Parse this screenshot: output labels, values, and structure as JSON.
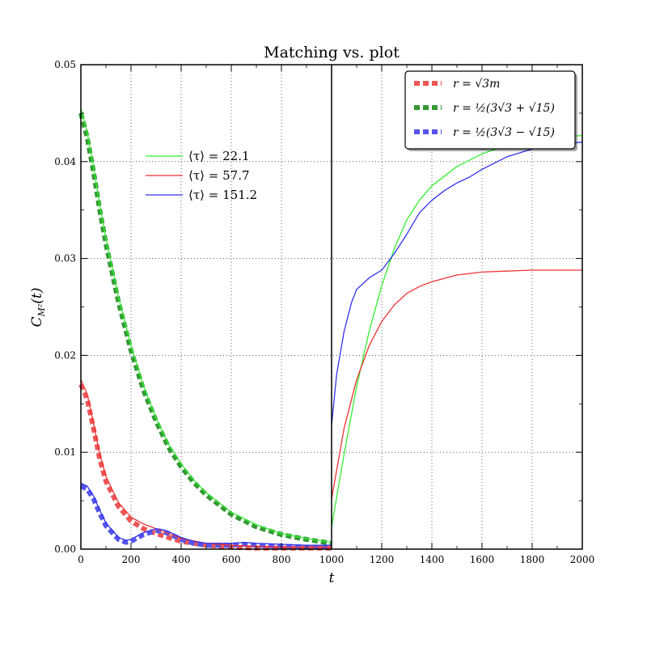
{
  "chart_data": {
    "type": "line",
    "title": "Matching vs. plot",
    "xlabel": "t",
    "ylabel": "C_{M²}(t)",
    "ylabel_main": "C",
    "ylabel_sub": "M²",
    "ylabel_suffix": "(t)",
    "xlim": [
      0,
      2000
    ],
    "ylim": [
      0,
      0.05
    ],
    "x_ticks": [
      0,
      200,
      400,
      600,
      800,
      1000,
      1200,
      1400,
      1600,
      1800,
      2000
    ],
    "y_ticks": [
      0.0,
      0.01,
      0.02,
      0.03,
      0.04,
      0.05
    ],
    "x_tick_labels": [
      "0",
      "200",
      "400",
      "600",
      "800",
      "1000",
      "1200",
      "1400",
      "1600",
      "1800",
      "2000"
    ],
    "y_tick_labels": [
      "0.00",
      "0.01",
      "0.02",
      "0.03",
      "0.04",
      "0.05"
    ],
    "grid": true,
    "divider_x": 1000,
    "colors": {
      "green": "#33ee33",
      "red": "#ee3333",
      "blue": "#3333ee",
      "green_dashed": "#339933",
      "red_dashed": "#ee5555",
      "blue_dashed": "#5555ee"
    },
    "legend_left": {
      "placement": "upper-left",
      "entries": [
        {
          "label": "⟨τ⟩ = 22.1",
          "color": "green"
        },
        {
          "label": "⟨τ⟩ = 57.7",
          "color": "red"
        },
        {
          "label": "⟨τ⟩ = 151.2",
          "color": "blue"
        }
      ]
    },
    "legend_right": {
      "placement": "top-right",
      "entries": [
        {
          "label": "r = √3m",
          "color": "red_dashed"
        },
        {
          "label": "r = ½(3√3 + √15)",
          "color": "green_dashed"
        },
        {
          "label": "r = ½(3√3 − √15)",
          "color": "blue_dashed"
        }
      ]
    },
    "series": [
      {
        "name": "⟨τ⟩ = 22.1",
        "color": "green",
        "style": "solid",
        "x": [
          0,
          25,
          50,
          75,
          100,
          150,
          200,
          250,
          300,
          350,
          400,
          450,
          500,
          600,
          700,
          800,
          900,
          1000
        ],
        "y": [
          0.0455,
          0.043,
          0.0395,
          0.0355,
          0.032,
          0.026,
          0.021,
          0.0168,
          0.0135,
          0.0108,
          0.0088,
          0.0071,
          0.0058,
          0.0038,
          0.0025,
          0.0016,
          0.0011,
          0.0007
        ]
      },
      {
        "name": "⟨τ⟩ = 57.7",
        "color": "red",
        "style": "solid",
        "x": [
          0,
          25,
          50,
          75,
          100,
          150,
          200,
          250,
          300,
          350,
          400,
          500,
          600,
          700,
          800,
          900,
          1000
        ],
        "y": [
          0.0175,
          0.016,
          0.013,
          0.0098,
          0.0075,
          0.0048,
          0.0033,
          0.0026,
          0.0021,
          0.0016,
          0.0011,
          0.0006,
          0.0004,
          0.0003,
          0.0002,
          0.0002,
          0.0002
        ]
      },
      {
        "name": "⟨τ⟩ = 151.2",
        "color": "blue",
        "style": "solid",
        "x": [
          0,
          25,
          50,
          75,
          100,
          150,
          180,
          200,
          250,
          300,
          330,
          350,
          400,
          450,
          500,
          600,
          650,
          700,
          800,
          900,
          1000
        ],
        "y": [
          0.0068,
          0.0065,
          0.0055,
          0.004,
          0.0027,
          0.0012,
          0.0009,
          0.001,
          0.0017,
          0.0021,
          0.002,
          0.0018,
          0.0012,
          0.0008,
          0.0006,
          0.0006,
          0.0007,
          0.0006,
          0.0005,
          0.0004,
          0.0004
        ]
      },
      {
        "name": "r = ½(3√3 + √15)",
        "color": "green_dashed",
        "style": "dashed",
        "x": [
          0,
          25,
          50,
          75,
          100,
          150,
          200,
          250,
          300,
          350,
          400,
          450,
          500,
          600,
          700,
          800,
          900,
          1000
        ],
        "y": [
          0.045,
          0.0425,
          0.039,
          0.035,
          0.0315,
          0.0255,
          0.0205,
          0.0164,
          0.0132,
          0.0105,
          0.0085,
          0.0069,
          0.0056,
          0.0036,
          0.0023,
          0.0015,
          0.001,
          0.0006
        ]
      },
      {
        "name": "r = √3m",
        "color": "red_dashed",
        "style": "dashed",
        "x": [
          0,
          25,
          50,
          75,
          100,
          150,
          200,
          250,
          300,
          350,
          400,
          500,
          600,
          700,
          800,
          900,
          1000
        ],
        "y": [
          0.017,
          0.0155,
          0.0125,
          0.0093,
          0.007,
          0.0044,
          0.0029,
          0.0021,
          0.0016,
          0.0012,
          0.0008,
          0.0004,
          0.0002,
          0.0001,
          0.0001,
          0.0001,
          0.0001
        ]
      },
      {
        "name": "r = ½(3√3 − √15)",
        "color": "blue_dashed",
        "style": "dashed",
        "x": [
          0,
          25,
          50,
          75,
          100,
          150,
          180,
          200,
          250,
          300,
          330,
          350,
          400,
          450,
          500,
          600,
          650,
          700,
          800,
          900,
          1000
        ],
        "y": [
          0.0065,
          0.0062,
          0.0052,
          0.0037,
          0.0024,
          0.001,
          0.0007,
          0.0008,
          0.0015,
          0.0019,
          0.0018,
          0.0016,
          0.001,
          0.0006,
          0.0004,
          0.0004,
          0.0005,
          0.0004,
          0.0003,
          0.0002,
          0.0002
        ]
      },
      {
        "name": "",
        "color": "green",
        "style": "solid",
        "panel": "right",
        "x": [
          1000,
          1050,
          1100,
          1150,
          1200,
          1250,
          1300,
          1350,
          1400,
          1500,
          1600,
          1700,
          1800,
          1900,
          2000
        ],
        "y": [
          0.0023,
          0.0098,
          0.0168,
          0.0225,
          0.0272,
          0.031,
          0.034,
          0.036,
          0.0375,
          0.0395,
          0.0408,
          0.0417,
          0.0422,
          0.0425,
          0.0427
        ]
      },
      {
        "name": "",
        "color": "red",
        "style": "solid",
        "panel": "right",
        "x": [
          1000,
          1050,
          1100,
          1150,
          1200,
          1250,
          1300,
          1350,
          1400,
          1500,
          1600,
          1700,
          1800,
          1900,
          2000
        ],
        "y": [
          0.0052,
          0.0125,
          0.0175,
          0.021,
          0.0235,
          0.0252,
          0.0264,
          0.0271,
          0.0276,
          0.0283,
          0.0286,
          0.0287,
          0.0288,
          0.0288,
          0.0288
        ]
      },
      {
        "name": "",
        "color": "blue",
        "style": "solid",
        "panel": "right",
        "x": [
          1000,
          1020,
          1050,
          1080,
          1100,
          1150,
          1200,
          1250,
          1300,
          1350,
          1400,
          1450,
          1500,
          1550,
          1600,
          1700,
          1800,
          1900,
          2000
        ],
        "y": [
          0.0128,
          0.018,
          0.0225,
          0.0255,
          0.0268,
          0.028,
          0.0288,
          0.0305,
          0.0325,
          0.0347,
          0.036,
          0.037,
          0.0378,
          0.0384,
          0.0392,
          0.0405,
          0.0413,
          0.0418,
          0.042
        ]
      }
    ]
  }
}
